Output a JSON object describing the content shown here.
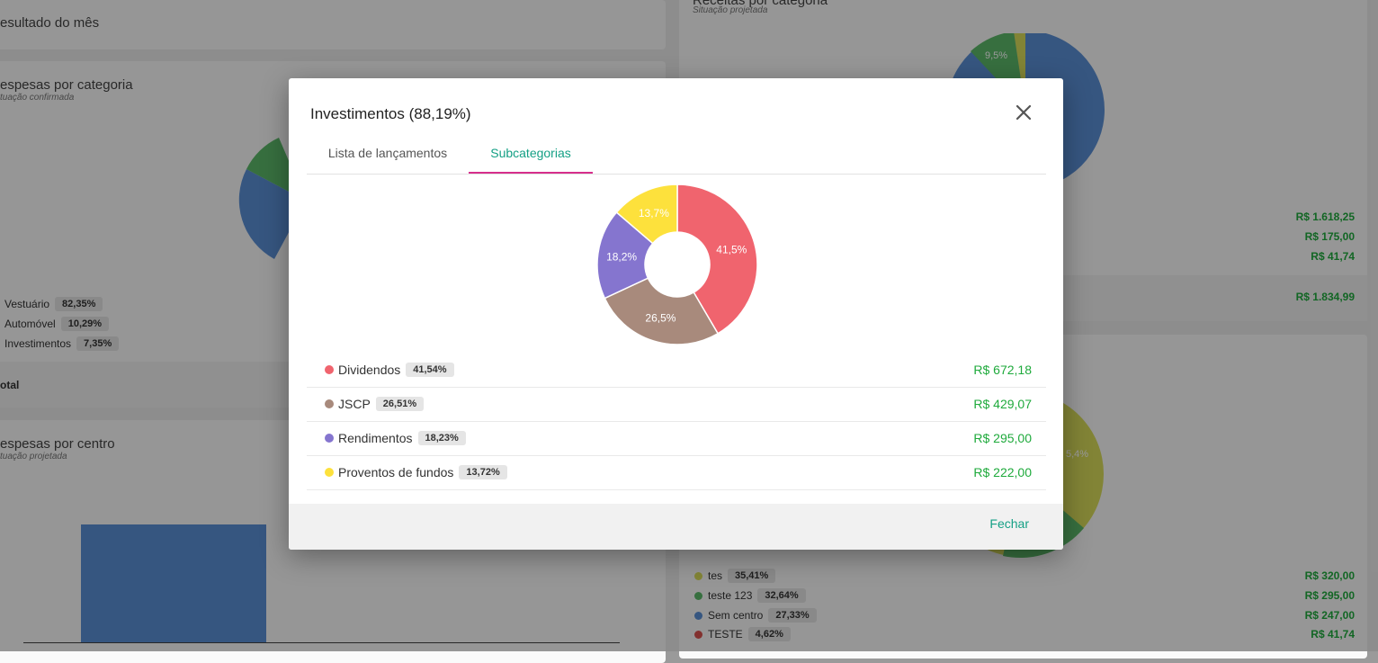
{
  "background": {
    "resultado_title": "esultado do mês",
    "despesas_categoria": {
      "title": "espesas por categoria",
      "subtitle": "tuação confirmada",
      "legend": [
        {
          "label": "Vestuário",
          "pct": "82,35%",
          "color": "#5b8fd6"
        },
        {
          "label": "Automóvel",
          "pct": "10,29%",
          "color": "#5cba6a"
        },
        {
          "label": "Investimentos",
          "pct": "7,35%",
          "color": "#d9dd5a"
        }
      ],
      "total_label": "otal"
    },
    "despesas_centro": {
      "title": "espesas por centro",
      "subtitle": "tuação projetada"
    },
    "receitas_categoria": {
      "title": "Receitas por categoria",
      "subtitle": "Situação projetada",
      "slice_label": "9,5%",
      "amounts": [
        "R$ 1.618,25",
        "R$ 175,00",
        "R$ 41,74"
      ],
      "total": "R$ 1.834,99"
    },
    "receitas_centro": {
      "slice_label": "5,4%",
      "legend": [
        {
          "label": "tes",
          "pct": "35,41%",
          "amount": "R$ 320,00",
          "color": "#d9dd5a"
        },
        {
          "label": "teste 123",
          "pct": "32,64%",
          "amount": "R$ 295,00",
          "color": "#5cba6a"
        },
        {
          "label": "Sem centro",
          "pct": "27,33%",
          "amount": "R$ 247,00",
          "color": "#5b8fd6"
        },
        {
          "label": "TESTE",
          "pct": "4,62%",
          "amount": "R$ 41,74",
          "color": "#d9534f"
        }
      ]
    }
  },
  "modal": {
    "title": "Investimentos (88,19%)",
    "tabs": [
      {
        "label": "Lista de lançamentos",
        "active": false
      },
      {
        "label": "Subcategorias",
        "active": true
      }
    ],
    "close_button": "Fechar",
    "chart_data": {
      "type": "pie",
      "slices": [
        {
          "label": "Dividendos",
          "value": 41.5,
          "display": "41,5%",
          "color": "#f0646e"
        },
        {
          "label": "JSCP",
          "value": 26.5,
          "display": "26,5%",
          "color": "#a88a7c"
        },
        {
          "label": "Rendimentos",
          "value": 18.2,
          "display": "18,2%",
          "color": "#8575cf"
        },
        {
          "label": "Proventos de fundos",
          "value": 13.7,
          "display": "13,7%",
          "color": "#fde13c"
        }
      ]
    },
    "subcategories": [
      {
        "name": "Dividendos",
        "pct": "41,54%",
        "amount": "R$ 672,18",
        "color": "#f0646e"
      },
      {
        "name": "JSCP",
        "pct": "26,51%",
        "amount": "R$ 429,07",
        "color": "#a88a7c"
      },
      {
        "name": "Rendimentos",
        "pct": "18,23%",
        "amount": "R$ 295,00",
        "color": "#8575cf"
      },
      {
        "name": "Proventos de fundos",
        "pct": "13,72%",
        "amount": "R$ 222,00",
        "color": "#fde13c"
      }
    ]
  }
}
